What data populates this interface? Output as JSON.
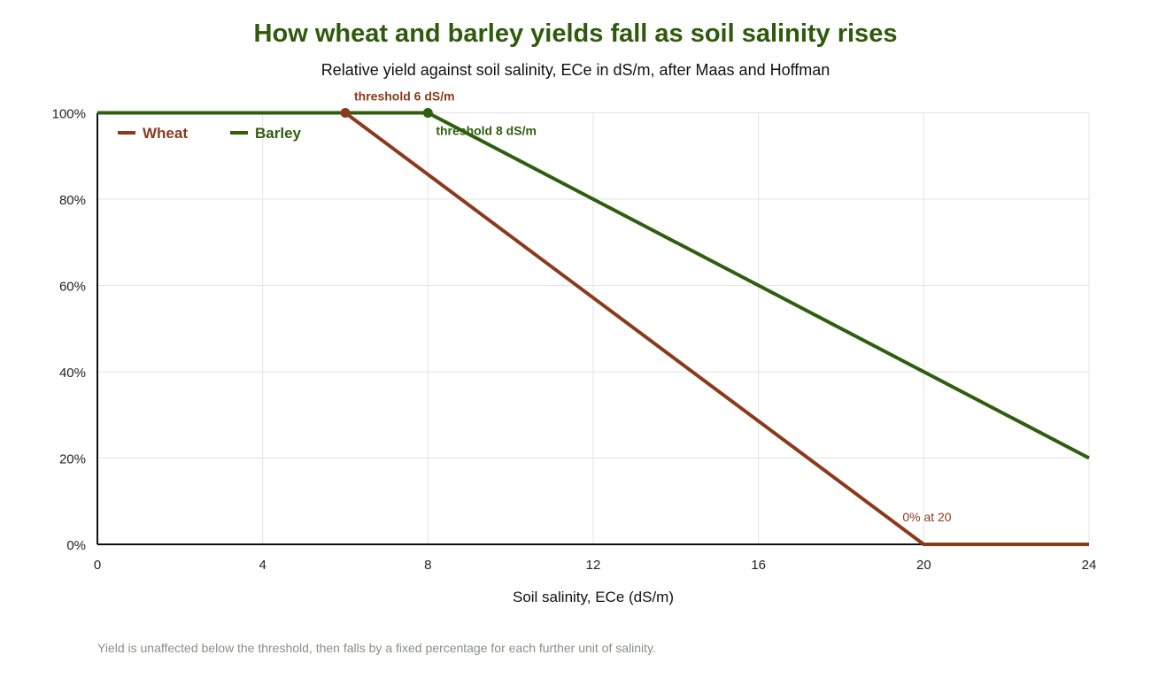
{
  "chart_data": {
    "type": "line",
    "title": "How wheat and barley yields fall as soil salinity rises",
    "subtitle": "Relative yield against soil salinity, ECe in dS/m, after Maas and Hoffman",
    "xlabel": "Soil salinity, ECe (dS/m)",
    "ylabel": "",
    "xlim": [
      0,
      24
    ],
    "ylim": [
      0,
      100
    ],
    "x_ticks": [
      0,
      4,
      8,
      12,
      16,
      20,
      24
    ],
    "x_tick_labels": [
      "0",
      "4",
      "8",
      "12",
      "16",
      "20",
      "24"
    ],
    "y_ticks": [
      0,
      20,
      40,
      60,
      80,
      100
    ],
    "y_tick_labels": [
      "0%",
      "20%",
      "40%",
      "60%",
      "80%",
      "100%"
    ],
    "grid": true,
    "legend_position": "top-left",
    "series": [
      {
        "name": "Wheat",
        "color": "#8b3a1c",
        "x": [
          0,
          6,
          20,
          24
        ],
        "y": [
          100,
          100,
          0,
          0
        ]
      },
      {
        "name": "Barley",
        "color": "#2f5e0e",
        "x": [
          0,
          8,
          24
        ],
        "y": [
          100,
          100,
          20
        ]
      }
    ],
    "annotations": [
      {
        "text": "threshold 6 dS/m",
        "x": 6,
        "y": 100,
        "series": "Wheat",
        "marker": true
      },
      {
        "text": "threshold 8 dS/m",
        "x": 8,
        "y": 100,
        "series": "Barley",
        "marker": true
      },
      {
        "text": "0% at 20",
        "x": 20,
        "y": 0,
        "series": "Wheat",
        "marker": false
      }
    ]
  },
  "footnote": "Yield is unaffected below the threshold, then falls by a fixed percentage for each further unit of salinity."
}
